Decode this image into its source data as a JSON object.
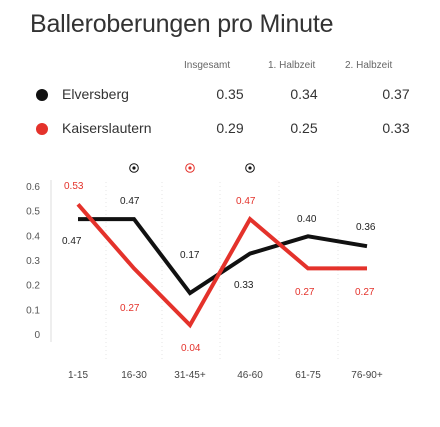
{
  "title": "Balleroberungen pro Minute",
  "headers": {
    "total": "Insgesamt",
    "first_half": "1. Halbzeit",
    "second_half": "2. Halbzeit"
  },
  "teams": [
    {
      "name": "Elversberg",
      "color": "#111111",
      "total": "0.35",
      "first_half": "0.34",
      "second_half": "0.37"
    },
    {
      "name": "Kaiserslautern",
      "color": "#e4322b",
      "total": "0.29",
      "first_half": "0.25",
      "second_half": "0.33"
    }
  ],
  "chart_data": {
    "type": "line",
    "categories": [
      "1-15",
      "16-30",
      "31-45+",
      "46-60",
      "61-75",
      "76-90+"
    ],
    "y_ticks": [
      "0.6",
      "0.5",
      "0.4",
      "0.3",
      "0.2",
      "0.1",
      "0"
    ],
    "ylim": [
      0,
      0.6
    ],
    "grid": false,
    "goal_markers": [
      {
        "interval": "16-30",
        "team": "Elversberg",
        "icon": "soccer-ball-icon",
        "color": "#111111"
      },
      {
        "interval": "31-45+",
        "team": "Kaiserslautern",
        "icon": "soccer-ball-icon",
        "color": "#e4322b"
      },
      {
        "interval": "46-60",
        "team": "Elversberg",
        "icon": "soccer-ball-icon",
        "color": "#111111"
      }
    ],
    "series": [
      {
        "name": "Elversberg",
        "color": "#111111",
        "values": [
          0.47,
          0.47,
          0.17,
          0.33,
          0.4,
          0.36
        ],
        "labels": [
          "0.47",
          "0.47",
          "0.17",
          "0.33",
          "0.40",
          "0.36"
        ]
      },
      {
        "name": "Kaiserslautern",
        "color": "#e4322b",
        "values": [
          0.53,
          0.27,
          0.04,
          0.47,
          0.27,
          0.27
        ],
        "labels": [
          "0.53",
          "0.27",
          "0.04",
          "0.47",
          "0.27",
          "0.27"
        ]
      }
    ]
  }
}
